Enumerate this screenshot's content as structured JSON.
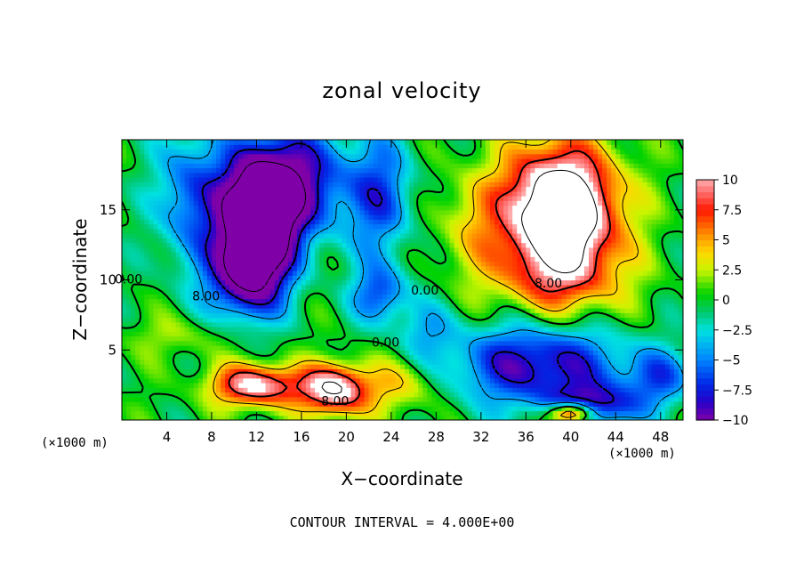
{
  "chart_data": {
    "type": "heatmap",
    "title": "zonal velocity",
    "xlabel": "X−coordinate",
    "ylabel": "Z−coordinate",
    "x_unit_label": "(×1000 m)",
    "footer": "CONTOUR INTERVAL = 4.000E+00",
    "xlim": [
      0,
      50
    ],
    "ylim": [
      0,
      20
    ],
    "x_ticks": [
      4,
      8,
      12,
      16,
      20,
      24,
      28,
      32,
      36,
      40,
      44,
      48
    ],
    "y_ticks": [
      5,
      10,
      15
    ],
    "colorbar": {
      "range": [
        -10,
        10
      ],
      "tick_values": [
        10,
        7.5,
        5,
        2.5,
        0,
        -2.5,
        -5,
        -7.5,
        -10
      ],
      "tick_labels": [
        "10",
        "7.5",
        "5",
        "2.5",
        "0",
        "−2.5",
        "−5",
        "−7.5",
        "−10"
      ]
    },
    "contour_interval": 4,
    "contour_labels": [
      {
        "text": "8.00",
        "x": 19,
        "z": 1.3
      },
      {
        "text": "0.00",
        "x": 23.5,
        "z": 5.5
      },
      {
        "text": "0.00",
        "x": 27,
        "z": 9.2
      },
      {
        "text": "8.00",
        "x": 7.5,
        "z": 8.8
      },
      {
        "text": "8.00",
        "x": 38,
        "z": 9.7
      },
      {
        "text": "0.00",
        "x": 0.6,
        "z": 10
      }
    ],
    "features": [
      {
        "x": 12,
        "z": 14,
        "sx": 3.2,
        "sz": 4.2,
        "amp": -17
      },
      {
        "x": 11,
        "z": 10,
        "sx": 3.5,
        "sz": 3.0,
        "amp": -8
      },
      {
        "x": 15,
        "z": 17,
        "sx": 5.0,
        "sz": 4.0,
        "amp": -10
      },
      {
        "x": 6,
        "z": 16,
        "sx": 3.0,
        "sz": 5.0,
        "amp": -6
      },
      {
        "x": 23,
        "z": 16,
        "sx": 3.0,
        "sz": 4.5,
        "amp": -6
      },
      {
        "x": 23,
        "z": 9,
        "sx": 2.5,
        "sz": 2.0,
        "amp": -6
      },
      {
        "x": 39,
        "z": 15,
        "sx": 5.0,
        "sz": 4.5,
        "amp": 18
      },
      {
        "x": 39,
        "z": 10,
        "sx": 6.0,
        "sz": 3.0,
        "amp": 5
      },
      {
        "x": 31,
        "z": 14,
        "sx": 3.0,
        "sz": 4.0,
        "amp": 3
      },
      {
        "x": 12,
        "z": 2.5,
        "sx": 4.0,
        "sz": 1.5,
        "amp": 11
      },
      {
        "x": 19,
        "z": 2.2,
        "sx": 3.0,
        "sz": 1.8,
        "amp": 12
      },
      {
        "x": 25,
        "z": 2.5,
        "sx": 3.5,
        "sz": 2.0,
        "amp": 4
      },
      {
        "x": 37,
        "z": 4,
        "sx": 8.0,
        "sz": 3.0,
        "amp": -9
      },
      {
        "x": 42,
        "z": 1,
        "sx": 4.0,
        "sz": 1.5,
        "amp": -8
      },
      {
        "x": 40,
        "z": 0.5,
        "sx": 2.0,
        "sz": 0.8,
        "amp": 14
      },
      {
        "x": 27,
        "z": 6.5,
        "sx": 2.5,
        "sz": 2.0,
        "amp": -3
      },
      {
        "x": 48,
        "z": 3,
        "sx": 3.0,
        "sz": 2.0,
        "amp": -5
      },
      {
        "x": 5,
        "z": 6,
        "sx": 5.0,
        "sz": 1.5,
        "amp": 2
      }
    ]
  }
}
